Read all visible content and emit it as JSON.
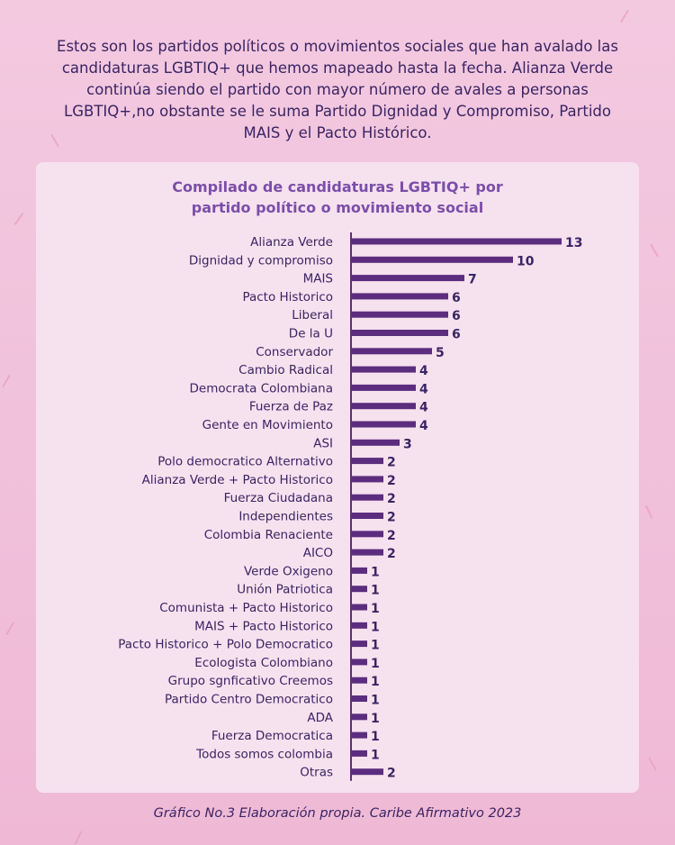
{
  "intro_text": "Estos son los partidos políticos o movimientos sociales que han avalado las candidaturas LGBTIQ+ que hemos mapeado hasta la fecha. Alianza Verde continúa siendo el partido con mayor número de avales a personas LGBTIQ+,no obstante se le suma Partido Dignidad y Compromiso, Partido MAIS y el Pacto Histórico.",
  "footer_text": "Gráfico No.3 Elaboración propia. Caribe Afirmativo 2023",
  "colors": {
    "bar": "#5c2d7e",
    "text": "#3a2463",
    "title": "#7b4ea8",
    "card": "#f6e1ef"
  },
  "chart_data": {
    "type": "bar",
    "orientation": "horizontal",
    "title": "Compilado de candidaturas LGBTIQ+ por partido político o movimiento social",
    "xlabel": "",
    "ylabel": "",
    "categories": [
      "Alianza Verde",
      "Dignidad y compromiso",
      "MAIS",
      "Pacto Historico",
      "Liberal",
      "De la U",
      "Conservador",
      "Cambio Radical",
      "Democrata Colombiana",
      "Fuerza de Paz",
      "Gente en Movimiento",
      "ASI",
      "Polo democratico Alternativo",
      "Alianza Verde + Pacto Historico",
      "Fuerza Ciudadana",
      "Independientes",
      "Colombia Renaciente",
      "AICO",
      "Verde Oxigeno",
      "Unión Patriotica",
      "Comunista + Pacto Historico",
      "MAIS + Pacto Historico",
      "Pacto Historico + Polo Democratico",
      "Ecologista Colombiano",
      "Grupo sgnficativo Creemos",
      "Partido Centro Democratico",
      "ADA",
      "Fuerza Democratica",
      "Todos somos colombia",
      "Otras"
    ],
    "values": [
      13,
      10,
      7,
      6,
      6,
      6,
      5,
      4,
      4,
      4,
      4,
      3,
      2,
      2,
      2,
      2,
      2,
      2,
      1,
      1,
      1,
      1,
      1,
      1,
      1,
      1,
      1,
      1,
      1,
      2
    ],
    "xlim": [
      0,
      13
    ],
    "grid": false,
    "legend": "none"
  }
}
